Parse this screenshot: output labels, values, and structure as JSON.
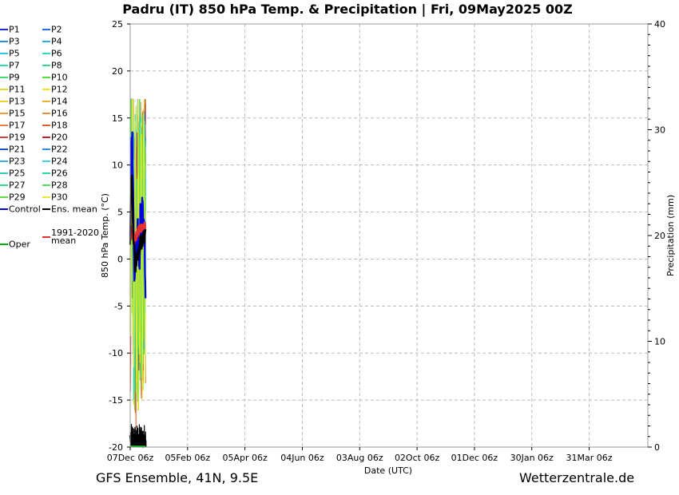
{
  "title": "Padru  (IT)  850 hPa Temp. & Precipitation | Fri, 09May2025 00Z",
  "footer": {
    "model": "GFS Ensemble, 41N, 9.5E",
    "site": "Wetterzentrale.de"
  },
  "legend": [
    {
      "label": "P1",
      "color": "#1f2ad8"
    },
    {
      "label": "P2",
      "color": "#2d6ae8"
    },
    {
      "label": "P3",
      "color": "#2a8fe0"
    },
    {
      "label": "P4",
      "color": "#2ab0e8"
    },
    {
      "label": "P5",
      "color": "#35c8e0"
    },
    {
      "label": "P6",
      "color": "#30d8c8"
    },
    {
      "label": "P7",
      "color": "#30e0a8"
    },
    {
      "label": "P8",
      "color": "#30d890"
    },
    {
      "label": "P9",
      "color": "#40e070"
    },
    {
      "label": "P10",
      "color": "#55e040"
    },
    {
      "label": "P11",
      "color": "#d8e030"
    },
    {
      "label": "P12",
      "color": "#f0e030"
    },
    {
      "label": "P13",
      "color": "#f0d030"
    },
    {
      "label": "P14",
      "color": "#f0b030"
    },
    {
      "label": "P15",
      "color": "#f0a030"
    },
    {
      "label": "P16",
      "color": "#e89040"
    },
    {
      "label": "P17",
      "color": "#e88040"
    },
    {
      "label": "P18",
      "color": "#e06030"
    },
    {
      "label": "P19",
      "color": "#d04040"
    },
    {
      "label": "P20",
      "color": "#c02030"
    },
    {
      "label": "P21",
      "color": "#2050d0"
    },
    {
      "label": "P22",
      "color": "#3090e8"
    },
    {
      "label": "P23",
      "color": "#30b0e0"
    },
    {
      "label": "P24",
      "color": "#40d0e8"
    },
    {
      "label": "P25",
      "color": "#30d0c0"
    },
    {
      "label": "P26",
      "color": "#30d8a8"
    },
    {
      "label": "P27",
      "color": "#30d880"
    },
    {
      "label": "P28",
      "color": "#50e050"
    },
    {
      "label": "P29",
      "color": "#60e040"
    },
    {
      "label": "P30",
      "color": "#e8e830"
    },
    {
      "label": "Control",
      "color": "#0000e0"
    },
    {
      "label": "Ens. mean",
      "color": "#000000"
    },
    {
      "label": "1991-2020 mean",
      "color": "#e83030"
    },
    {
      "label": "Oper",
      "color": "#00b000"
    }
  ],
  "chart_data": {
    "type": "line",
    "xlabel": "Date (UTC)",
    "ylabel": "850 hPa Temp. (°C)",
    "y2label": "Precipitation (mm)",
    "ylim": [
      -20,
      25
    ],
    "y2lim": [
      0,
      40
    ],
    "yticks": [
      "25",
      "20",
      "15",
      "10",
      "5",
      "0",
      "-5",
      "-10",
      "-15",
      "-20"
    ],
    "y2ticks": [
      "40",
      "30",
      "20",
      "10",
      "0"
    ],
    "xticks": [
      "07Dec 06z",
      "05Feb 06z",
      "05Apr 06z",
      "04Jun 06z",
      "03Aug 06z",
      "02Oct 06z",
      "01Dec 06z",
      "30Jan 06z",
      "31Mar 06z"
    ],
    "x_range_days": [
      0,
      540
    ],
    "forecast_days": 16,
    "series_summary": {
      "ens_mean_temp_approx": [
        1.5,
        9,
        8,
        2,
        1,
        -1,
        0,
        1,
        0.5,
        1,
        2,
        1.5,
        2,
        2.5,
        2,
        3
      ],
      "climate_mean_temp_approx": [
        3.5,
        3,
        2.5,
        2.2,
        2,
        2.2,
        2.5,
        2.8,
        3,
        3.2,
        3.1,
        3.3,
        3.2,
        3.4,
        3.5,
        3.3
      ],
      "control_temp_approx": [
        1,
        12,
        13,
        6,
        -4,
        3,
        0,
        4,
        2,
        -2,
        5,
        3,
        6,
        4,
        2,
        -3
      ],
      "ens_spread_temp_range": [
        -19,
        17
      ],
      "precip_ens_mean_max_mm": 3.6
    }
  }
}
